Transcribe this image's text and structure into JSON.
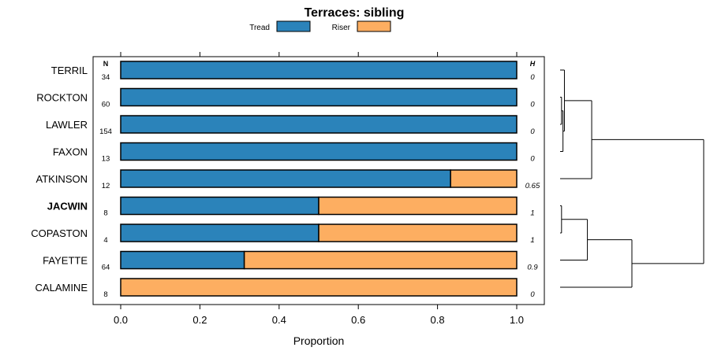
{
  "chart_data": {
    "type": "bar",
    "orientation": "horizontal",
    "stacked": true,
    "title": "Terraces: sibling",
    "xlabel": "Proportion",
    "ylabel": "",
    "xlim": [
      0,
      1
    ],
    "x_ticks": [
      0.0,
      0.2,
      0.4,
      0.6,
      0.8,
      1.0
    ],
    "x_tick_labels": [
      "0.0",
      "0.2",
      "0.4",
      "0.6",
      "0.8",
      "1.0"
    ],
    "legend_position": "top",
    "legend": [
      {
        "name": "Tread",
        "color": "#2b83ba"
      },
      {
        "name": "Riser",
        "color": "#fdae61"
      }
    ],
    "n_header": "N",
    "h_header": "H",
    "categories": [
      "TERRIL",
      "ROCKTON",
      "LAWLER",
      "FAXON",
      "ATKINSON",
      "JACWIN",
      "COPASTON",
      "FAYETTE",
      "CALAMINE"
    ],
    "bold_category": "JACWIN",
    "n": [
      "34",
      "60",
      "154",
      "13",
      "12",
      "8",
      "4",
      "64",
      "8"
    ],
    "h": [
      "0",
      "0",
      "0",
      "0",
      "0.65",
      "1",
      "1",
      "0.9",
      "0"
    ],
    "series": [
      {
        "name": "Tread",
        "values": [
          1.0,
          1.0,
          1.0,
          1.0,
          0.833,
          0.5,
          0.5,
          0.312,
          0.0
        ]
      },
      {
        "name": "Riser",
        "values": [
          0.0,
          0.0,
          0.0,
          0.0,
          0.167,
          0.5,
          0.5,
          0.688,
          1.0
        ]
      }
    ],
    "dendrogram": {
      "description": "cluster tree of the nine soil series",
      "merges": [
        {
          "a": "ROCKTON",
          "b": "LAWLER",
          "height": 0.01
        },
        {
          "a": "m1",
          "b": "FAXON",
          "height": 0.02
        },
        {
          "a": "TERRIL",
          "b": "m2",
          "height": 0.03
        },
        {
          "a": "m3",
          "b": "ATKINSON",
          "height": 0.22
        },
        {
          "a": "JACWIN",
          "b": "COPASTON",
          "height": 0.01
        },
        {
          "a": "m5",
          "b": "FAYETTE",
          "height": 0.19
        },
        {
          "a": "m6",
          "b": "CALAMINE",
          "height": 0.5
        },
        {
          "a": "m4",
          "b": "m7",
          "height": 1.0
        }
      ]
    }
  }
}
